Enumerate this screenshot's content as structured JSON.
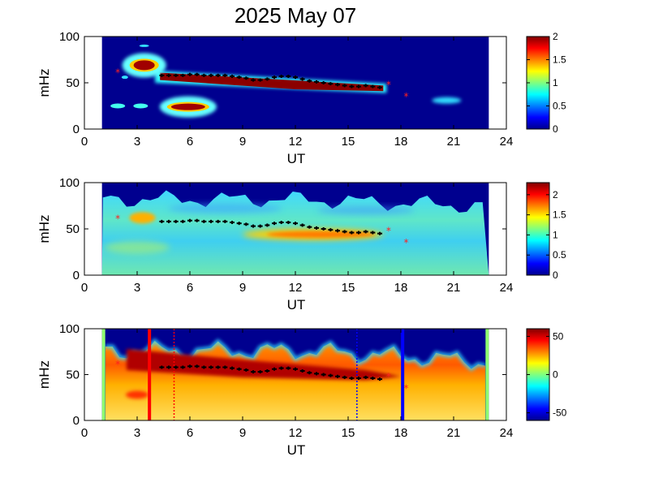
{
  "figure": {
    "title": "2025 May 07"
  },
  "chart_data": [
    {
      "type": "heatmap",
      "xlabel": "UT",
      "ylabel": "mHz",
      "xlim": [
        0,
        24
      ],
      "ylim": [
        0,
        100
      ],
      "xticks": [
        0,
        3,
        6,
        9,
        12,
        15,
        18,
        21,
        24
      ],
      "yticks": [
        0,
        50,
        100
      ],
      "colorbar": {
        "min": 0,
        "max": 2,
        "ticks": [
          0,
          0.5,
          1,
          1.5,
          2
        ],
        "tick_labels": [
          "0",
          "0.5",
          "1",
          "1.5",
          "2"
        ],
        "colormap": "jet"
      },
      "data_window_ut": [
        1.0,
        23.0
      ],
      "background": "#00008f",
      "features": [
        {
          "ut_start": 4.3,
          "ut_end": 17.0,
          "mhz_start": 58,
          "mhz_end": 45,
          "value": 2.0
        },
        {
          "ut_center": 3.4,
          "mhz_center": 69,
          "value": 1.9
        },
        {
          "ut_center": 5.9,
          "mhz_center": 24,
          "value": 1.9
        },
        {
          "ut_center": 20.6,
          "mhz_center": 31,
          "value": 0.5
        }
      ]
    },
    {
      "type": "heatmap",
      "xlabel": "UT",
      "ylabel": "mHz",
      "xlim": [
        0,
        24
      ],
      "ylim": [
        0,
        100
      ],
      "xticks": [
        0,
        3,
        6,
        9,
        12,
        15,
        18,
        21,
        24
      ],
      "yticks": [
        0,
        50,
        100
      ],
      "colorbar": {
        "min": 0,
        "max": 2.3,
        "ticks": [
          0,
          0.5,
          1,
          1.5,
          2
        ],
        "tick_labels": [
          "0",
          "0.5",
          "1",
          "1.5",
          "2"
        ],
        "colormap": "jet"
      },
      "data_window_ut": [
        1.0,
        23.0
      ],
      "background": "#00008f",
      "features": [
        {
          "ut_start": 9.0,
          "ut_end": 17.0,
          "mhz_center": 44,
          "value": 1.6
        },
        {
          "ut_center": 3.3,
          "mhz_center": 62,
          "value": 1.6
        }
      ]
    },
    {
      "type": "heatmap",
      "xlabel": "UT",
      "ylabel": "mHz",
      "xlim": [
        0,
        24
      ],
      "ylim": [
        0,
        100
      ],
      "xticks": [
        0,
        3,
        6,
        9,
        12,
        15,
        18,
        21,
        24
      ],
      "yticks": [
        0,
        50,
        100
      ],
      "colorbar": {
        "min": -60,
        "max": 60,
        "ticks": [
          -50,
          0,
          50
        ],
        "tick_labels": [
          "-50",
          "0",
          "50"
        ],
        "colormap": "jet"
      },
      "data_window_ut": [
        1.0,
        23.0
      ],
      "background": "#00008f",
      "vertical_lines": [
        {
          "ut": 3.7,
          "color": "#ff0000",
          "style": "solid"
        },
        {
          "ut": 5.1,
          "color": "#ff0000",
          "style": "dotted"
        },
        {
          "ut": 15.5,
          "color": "#0000ff",
          "style": "dotted"
        },
        {
          "ut": 18.1,
          "color": "#0000ff",
          "style": "solid"
        }
      ]
    }
  ],
  "markers": {
    "black": [
      [
        4.4,
        58
      ],
      [
        4.8,
        58
      ],
      [
        5.2,
        58
      ],
      [
        5.6,
        58
      ],
      [
        6.0,
        59
      ],
      [
        6.4,
        59
      ],
      [
        6.8,
        58
      ],
      [
        7.2,
        58
      ],
      [
        7.6,
        58
      ],
      [
        8.0,
        58
      ],
      [
        8.4,
        57
      ],
      [
        8.8,
        56
      ],
      [
        9.2,
        55
      ],
      [
        9.6,
        53
      ],
      [
        10.0,
        53
      ],
      [
        10.4,
        54
      ],
      [
        10.8,
        56
      ],
      [
        11.2,
        57
      ],
      [
        11.6,
        57
      ],
      [
        12.0,
        56
      ],
      [
        12.4,
        54
      ],
      [
        12.8,
        52
      ],
      [
        13.2,
        51
      ],
      [
        13.6,
        50
      ],
      [
        14.0,
        49
      ],
      [
        14.4,
        48
      ],
      [
        14.8,
        47
      ],
      [
        15.2,
        46
      ],
      [
        15.6,
        46
      ],
      [
        16.0,
        47
      ],
      [
        16.4,
        46
      ],
      [
        16.8,
        45
      ]
    ],
    "red": [
      [
        1.9,
        61
      ],
      [
        17.3,
        48
      ],
      [
        18.3,
        35
      ]
    ]
  }
}
